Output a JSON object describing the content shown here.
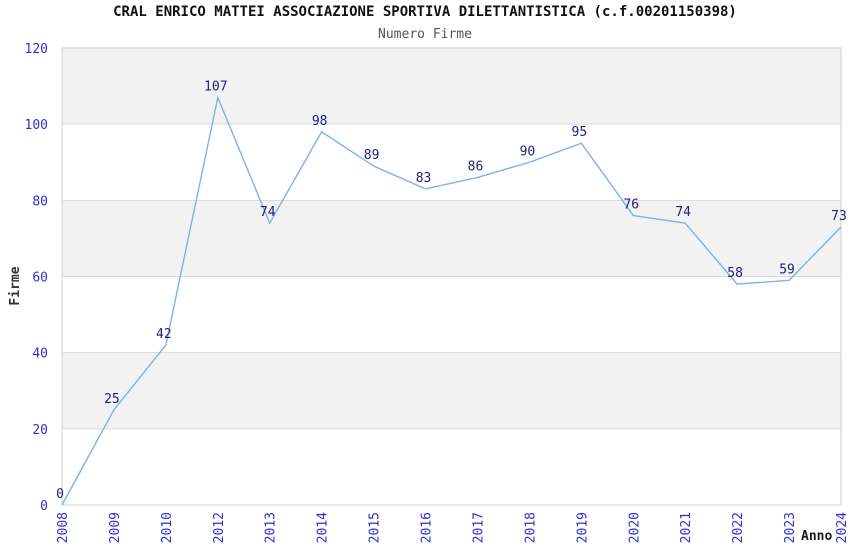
{
  "title": "CRAL ENRICO MATTEI ASSOCIAZIONE SPORTIVA DILETTANTISTICA (c.f.00201150398)",
  "subtitle": "Numero Firme",
  "axes": {
    "x_label": "Anno",
    "y_label": "Firme"
  },
  "chart_data": {
    "type": "line",
    "title": "Numero Firme",
    "categories": [
      "2008",
      "2009",
      "2010",
      "2012",
      "2013",
      "2014",
      "2015",
      "2016",
      "2017",
      "2018",
      "2019",
      "2020",
      "2021",
      "2022",
      "2023",
      "2024"
    ],
    "values": [
      0,
      25,
      42,
      107,
      74,
      98,
      89,
      83,
      86,
      90,
      95,
      76,
      74,
      58,
      59,
      73
    ],
    "xlabel": "Anno",
    "ylabel": "Firme",
    "ylim": [
      0,
      120
    ],
    "yticks": [
      0,
      20,
      40,
      60,
      80,
      100,
      120
    ],
    "grid": true,
    "band_style": "alternating-horizontal",
    "legend_position": "none",
    "point_labels_visible": true,
    "x_tick_rotation": -90
  },
  "colors": {
    "line": "#7fb2e8",
    "data_label": "#202080",
    "tick_label": "#3030cc",
    "band": "#f2f2f2",
    "band_alt": "#ffffff",
    "gridline": "#dcdcdc",
    "plot_border": "#cfcfcf",
    "title": "#111111",
    "subtitle": "#555555",
    "axis_label": "#333333",
    "background": "#ffffff"
  }
}
